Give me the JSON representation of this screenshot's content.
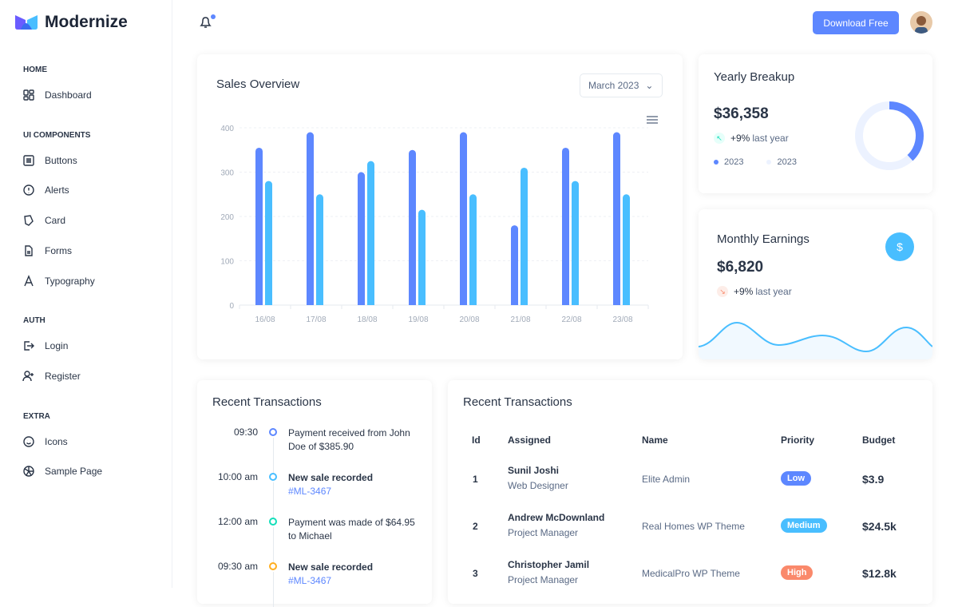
{
  "brand": {
    "name": "Modernize"
  },
  "sidebar": {
    "sections": [
      {
        "title": "HOME",
        "items": [
          {
            "label": "Dashboard",
            "icon": "dashboard-icon"
          }
        ]
      },
      {
        "title": "UI COMPONENTS",
        "items": [
          {
            "label": "Buttons",
            "icon": "buttons-icon"
          },
          {
            "label": "Alerts",
            "icon": "alert-circle-icon"
          },
          {
            "label": "Card",
            "icon": "card-icon"
          },
          {
            "label": "Forms",
            "icon": "file-icon"
          },
          {
            "label": "Typography",
            "icon": "typography-icon"
          }
        ]
      },
      {
        "title": "AUTH",
        "items": [
          {
            "label": "Login",
            "icon": "login-icon"
          },
          {
            "label": "Register",
            "icon": "user-plus-icon"
          }
        ]
      },
      {
        "title": "EXTRA",
        "items": [
          {
            "label": "Icons",
            "icon": "mood-icon"
          },
          {
            "label": "Sample Page",
            "icon": "aperture-icon"
          }
        ]
      }
    ]
  },
  "header": {
    "download_label": "Download Free"
  },
  "sales": {
    "title": "Sales Overview",
    "select_value": "March 2023"
  },
  "chart_data": {
    "type": "bar",
    "categories": [
      "16/08",
      "17/08",
      "18/08",
      "19/08",
      "20/08",
      "21/08",
      "22/08",
      "23/08"
    ],
    "series": [
      {
        "values": [
          355,
          390,
          300,
          350,
          390,
          180,
          355,
          390
        ],
        "color": "#5d87ff"
      },
      {
        "values": [
          280,
          250,
          325,
          215,
          250,
          310,
          280,
          250
        ],
        "color": "#49beff"
      }
    ],
    "yticks": [
      0,
      100,
      200,
      300,
      400
    ],
    "ylim": [
      0,
      400
    ],
    "grid": true
  },
  "yearly": {
    "title": "Yearly Breakup",
    "amount": "$36,358",
    "trend": "+9%",
    "trend_text": "last year",
    "legend": [
      "2023",
      "2023"
    ],
    "donut_fraction": 0.38,
    "colors": [
      "#5d87ff",
      "#ecf2ff"
    ]
  },
  "monthly": {
    "title": "Monthly Earnings",
    "amount": "$6,820",
    "trend": "+9%",
    "trend_text": "last year",
    "icon": "dollar-icon"
  },
  "timeline": {
    "title": "Recent Transactions",
    "items": [
      {
        "time": "09:30",
        "text": "Payment received from John Doe of $385.90",
        "link": "",
        "color": "#5d87ff",
        "bold": false
      },
      {
        "time": "10:00 am",
        "text": "New sale recorded",
        "link": "#ML-3467",
        "color": "#49beff",
        "bold": true
      },
      {
        "time": "12:00 am",
        "text": "Payment was made of $64.95 to Michael",
        "link": "",
        "color": "#13deb9",
        "bold": false
      },
      {
        "time": "09:30 am",
        "text": "New sale recorded",
        "link": "#ML-3467",
        "color": "#ffae1f",
        "bold": true
      }
    ]
  },
  "table": {
    "title": "Recent Transactions",
    "headers": [
      "Id",
      "Assigned",
      "Name",
      "Priority",
      "Budget"
    ],
    "rows": [
      {
        "id": "1",
        "name": "Sunil Joshi",
        "role": "Web Designer",
        "project": "Elite Admin",
        "priority": "Low",
        "priority_color": "#5d87ff",
        "budget": "$3.9"
      },
      {
        "id": "2",
        "name": "Andrew McDownland",
        "role": "Project Manager",
        "project": "Real Homes WP Theme",
        "priority": "Medium",
        "priority_color": "#49beff",
        "budget": "$24.5k"
      },
      {
        "id": "3",
        "name": "Christopher Jamil",
        "role": "Project Manager",
        "project": "MedicalPro WP Theme",
        "priority": "High",
        "priority_color": "#fa896b",
        "budget": "$12.8k"
      }
    ]
  }
}
